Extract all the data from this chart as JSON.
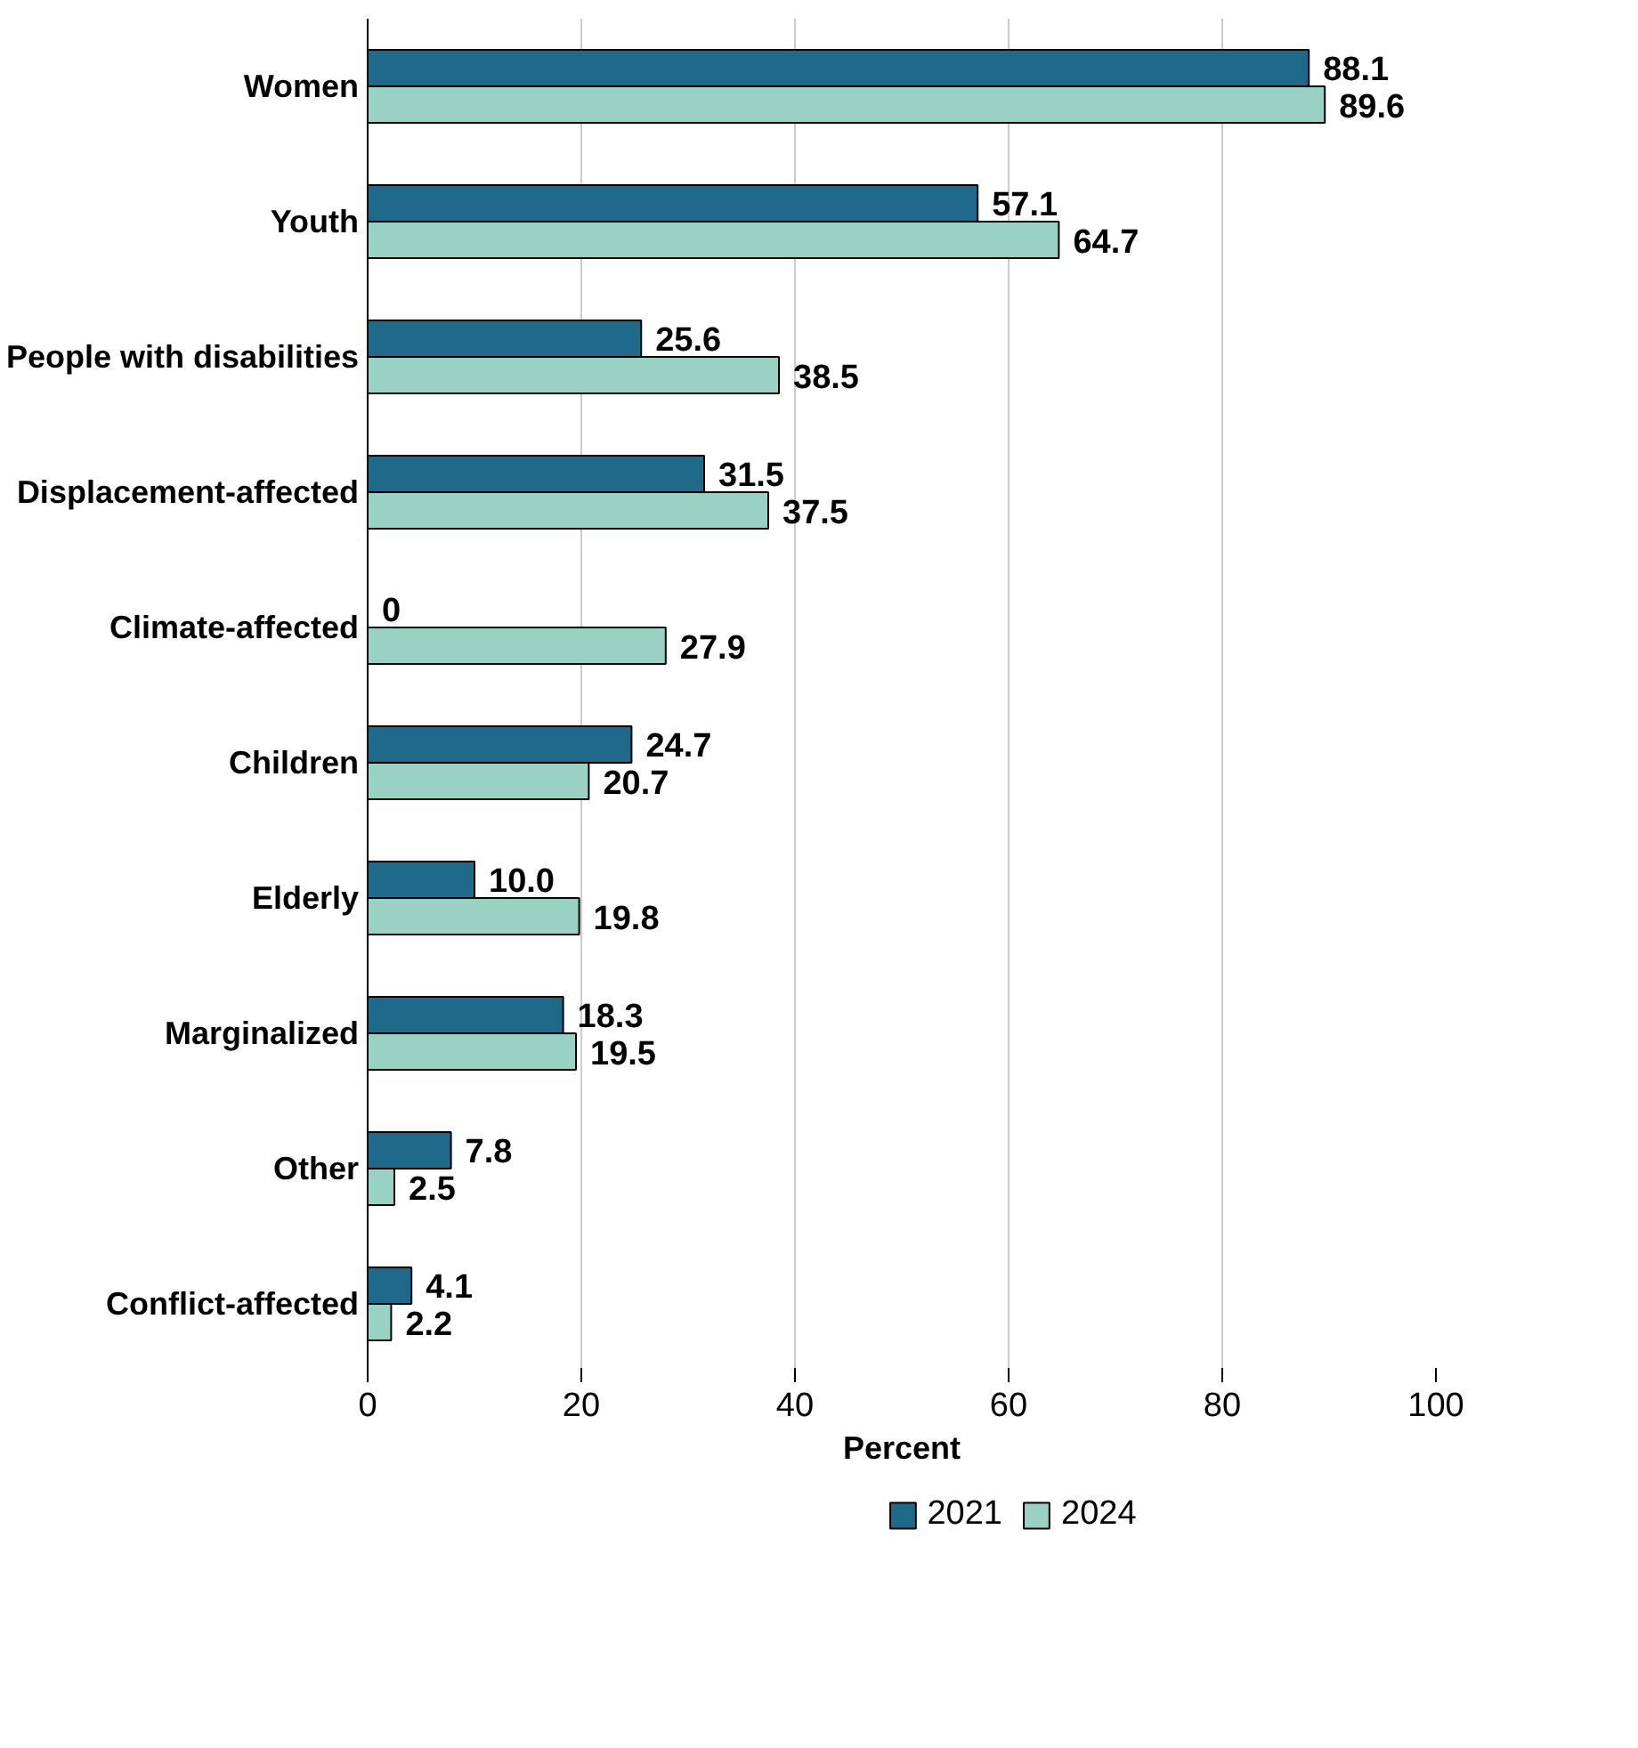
{
  "chart_data": {
    "type": "bar",
    "orientation": "horizontal",
    "xlabel": "Percent",
    "categories": [
      "Women",
      "Youth",
      "People with disabilities",
      "Displacement-affected",
      "Climate-affected",
      "Children",
      "Elderly",
      "Marginalized",
      "Other",
      "Conflict-affected"
    ],
    "series": [
      {
        "name": "2021",
        "color": "#1f6a8a",
        "values": [
          88.1,
          57.1,
          25.6,
          31.5,
          0,
          24.7,
          10.0,
          18.3,
          7.8,
          4.1
        ],
        "value_labels": [
          "88.1",
          "57.1",
          "25.6",
          "31.5",
          "0",
          "24.7",
          "10.0",
          "18.3",
          "7.8",
          "4.1"
        ]
      },
      {
        "name": "2024",
        "color": "#99d1c2",
        "values": [
          89.6,
          64.7,
          38.5,
          37.5,
          27.9,
          20.7,
          19.8,
          19.5,
          2.5,
          2.2
        ],
        "value_labels": [
          "89.6",
          "64.7",
          "38.5",
          "37.5",
          "27.9",
          "20.7",
          "19.8",
          "19.5",
          "2.5",
          "2.2"
        ]
      }
    ],
    "xlim": [
      0,
      100
    ],
    "xticks": [
      0,
      20,
      40,
      60,
      80,
      100
    ],
    "grid": "x",
    "legend": "bottom"
  }
}
